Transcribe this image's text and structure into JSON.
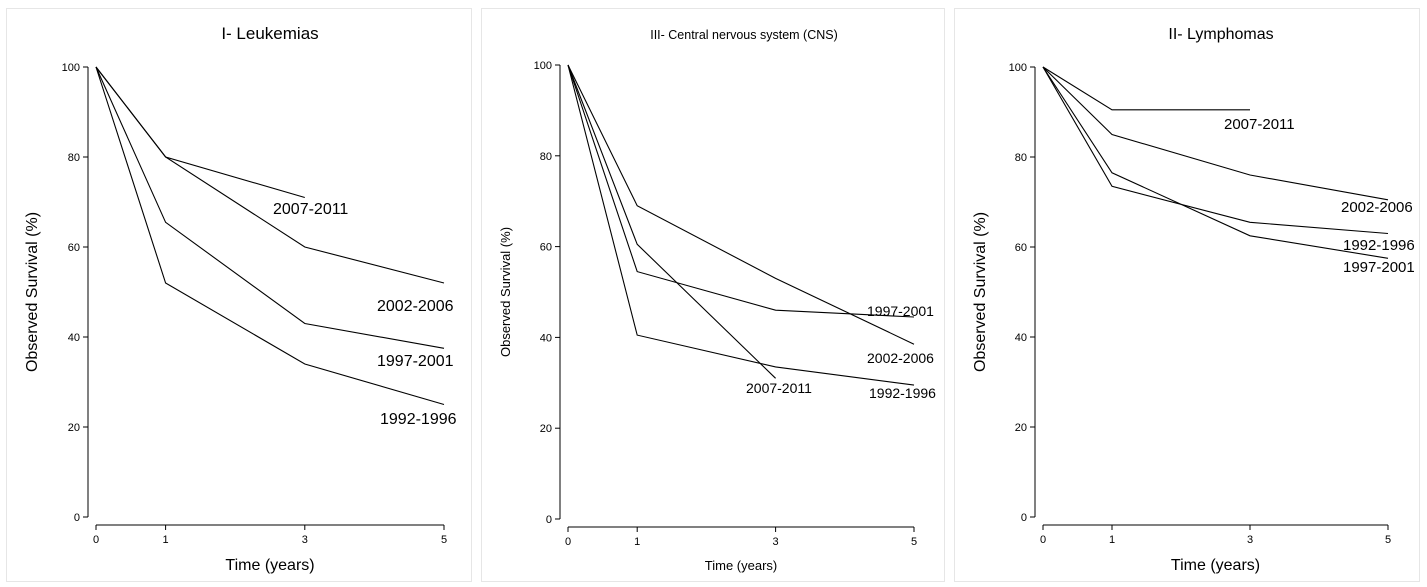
{
  "chart_data": [
    {
      "type": "line",
      "title": "I- Leukemias",
      "xlabel": "Time (years)",
      "ylabel": "Observed Survival (%)",
      "x": [
        0,
        1,
        3,
        5
      ],
      "xlim": [
        0,
        5
      ],
      "ylim": [
        0,
        100
      ],
      "yticks": [
        0,
        20,
        40,
        60,
        80,
        100
      ],
      "grid": false,
      "series": [
        {
          "name": "2007-2011",
          "x": [
            0,
            1,
            3
          ],
          "values": [
            100,
            80,
            71
          ]
        },
        {
          "name": "2002-2006",
          "x": [
            0,
            1,
            3,
            5
          ],
          "values": [
            100,
            80,
            60,
            52
          ]
        },
        {
          "name": "1997-2001",
          "x": [
            0,
            1,
            3,
            5
          ],
          "values": [
            100,
            65.5,
            43,
            37.5
          ]
        },
        {
          "name": "1992-1996",
          "x": [
            0,
            1,
            3,
            5
          ],
          "values": [
            100,
            52,
            34,
            25
          ]
        }
      ]
    },
    {
      "type": "line",
      "title": "III- Central nervous system (CNS)",
      "xlabel": "Time (years)",
      "ylabel": "Observed Survival (%)",
      "x": [
        0,
        1,
        3,
        5
      ],
      "xlim": [
        0,
        5
      ],
      "ylim": [
        0,
        100
      ],
      "yticks": [
        0,
        20,
        40,
        60,
        80,
        100
      ],
      "grid": false,
      "series": [
        {
          "name": "2002-2006",
          "x": [
            0,
            1,
            3,
            5
          ],
          "values": [
            100,
            69,
            53,
            38.5
          ]
        },
        {
          "name": "1997-2001",
          "x": [
            0,
            1,
            3,
            5
          ],
          "values": [
            100,
            54.5,
            46,
            44.5
          ]
        },
        {
          "name": "2007-2011",
          "x": [
            0,
            1,
            3
          ],
          "values": [
            100,
            60.5,
            31
          ]
        },
        {
          "name": "1992-1996",
          "x": [
            0,
            1,
            3,
            5
          ],
          "values": [
            100,
            40.5,
            33.5,
            29.5
          ]
        }
      ]
    },
    {
      "type": "line",
      "title": "II- Lymphomas",
      "xlabel": "Time (years)",
      "ylabel": "Observed Survival (%)",
      "x": [
        0,
        1,
        3,
        5
      ],
      "xlim": [
        0,
        5
      ],
      "ylim": [
        0,
        100
      ],
      "yticks": [
        0,
        20,
        40,
        60,
        80,
        100
      ],
      "grid": false,
      "series": [
        {
          "name": "2007-2011",
          "x": [
            0,
            1,
            3
          ],
          "values": [
            100,
            90.5,
            90.5
          ]
        },
        {
          "name": "2002-2006",
          "x": [
            0,
            1,
            3,
            5
          ],
          "values": [
            100,
            85,
            76,
            70.5
          ]
        },
        {
          "name": "1992-1996",
          "x": [
            0,
            1,
            3,
            5
          ],
          "values": [
            100,
            73.5,
            65.5,
            63
          ]
        },
        {
          "name": "1997-2001",
          "x": [
            0,
            1,
            3,
            5
          ],
          "values": [
            100,
            76.5,
            62.5,
            57.5
          ]
        }
      ]
    }
  ]
}
